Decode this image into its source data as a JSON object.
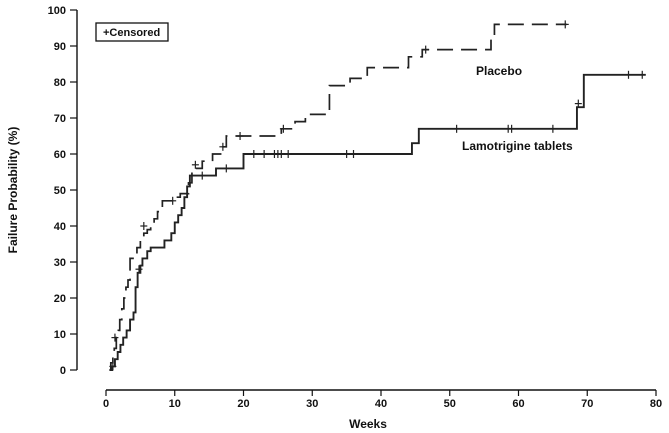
{
  "chart_data": {
    "type": "line",
    "title": "",
    "xlabel": "Weeks",
    "ylabel": "Failure Probability (%)",
    "xlim": [
      0,
      80
    ],
    "ylim": [
      0,
      100
    ],
    "x_ticks": [
      0,
      10,
      20,
      30,
      40,
      50,
      60,
      70,
      80
    ],
    "y_ticks": [
      0,
      10,
      20,
      30,
      40,
      50,
      60,
      70,
      80,
      90,
      100
    ],
    "grid": false,
    "legend": {
      "text": "+Censored",
      "position": "top-left"
    },
    "series": [
      {
        "name": "Placebo",
        "style": "dashed",
        "color": "#222222",
        "steps": [
          [
            0.5,
            0
          ],
          [
            0.7,
            2
          ],
          [
            1.0,
            4
          ],
          [
            1.2,
            6
          ],
          [
            1.5,
            9
          ],
          [
            1.8,
            11
          ],
          [
            2.0,
            14
          ],
          [
            2.3,
            17
          ],
          [
            2.6,
            20
          ],
          [
            2.9,
            23
          ],
          [
            3.2,
            25
          ],
          [
            3.5,
            31
          ],
          [
            4.5,
            34
          ],
          [
            5.0,
            37
          ],
          [
            5.5,
            38
          ],
          [
            6.0,
            39
          ],
          [
            6.5,
            40
          ],
          [
            7.0,
            42
          ],
          [
            7.5,
            44
          ],
          [
            8.2,
            47
          ],
          [
            10.0,
            48
          ],
          [
            10.8,
            49
          ],
          [
            12.0,
            52
          ],
          [
            12.5,
            56
          ],
          [
            14.0,
            58
          ],
          [
            15.5,
            60
          ],
          [
            16.8,
            62
          ],
          [
            17.5,
            65
          ],
          [
            25.5,
            67
          ],
          [
            27.5,
            69
          ],
          [
            29.0,
            71
          ],
          [
            32.5,
            79
          ],
          [
            35.5,
            81
          ],
          [
            38.0,
            84
          ],
          [
            44.0,
            87
          ],
          [
            46.0,
            89
          ],
          [
            56.0,
            92
          ],
          [
            56.5,
            96
          ],
          [
            67.0,
            96
          ]
        ],
        "censored": [
          [
            1.3,
            9
          ],
          [
            5.5,
            40
          ],
          [
            9.7,
            47
          ],
          [
            13.0,
            57
          ],
          [
            17.0,
            62
          ],
          [
            19.5,
            65
          ],
          [
            25.8,
            67
          ],
          [
            46.5,
            89
          ],
          [
            66.8,
            96
          ]
        ]
      },
      {
        "name": "Lamotrigine tablets",
        "style": "solid",
        "color": "#222222",
        "steps": [
          [
            0.5,
            0
          ],
          [
            0.9,
            1
          ],
          [
            1.3,
            3
          ],
          [
            1.7,
            5
          ],
          [
            2.1,
            7
          ],
          [
            2.5,
            9
          ],
          [
            3.0,
            11
          ],
          [
            3.5,
            14
          ],
          [
            4.0,
            16
          ],
          [
            4.3,
            23
          ],
          [
            4.6,
            27
          ],
          [
            5.0,
            29
          ],
          [
            5.3,
            31
          ],
          [
            6.0,
            33
          ],
          [
            6.5,
            34
          ],
          [
            8.5,
            36
          ],
          [
            9.5,
            38
          ],
          [
            10.0,
            41
          ],
          [
            10.5,
            43
          ],
          [
            11.0,
            45
          ],
          [
            11.4,
            48
          ],
          [
            11.8,
            51
          ],
          [
            12.2,
            54
          ],
          [
            16.0,
            56
          ],
          [
            20.0,
            60
          ],
          [
            44.5,
            63
          ],
          [
            45.5,
            67
          ],
          [
            68.5,
            73
          ],
          [
            69.5,
            82
          ],
          [
            78.5,
            82
          ]
        ],
        "censored": [
          [
            1.0,
            1
          ],
          [
            4.8,
            28
          ],
          [
            14.0,
            54
          ],
          [
            17.5,
            56
          ],
          [
            21.5,
            60
          ],
          [
            23.0,
            60
          ],
          [
            24.5,
            60
          ],
          [
            25.0,
            60
          ],
          [
            25.5,
            60
          ],
          [
            26.5,
            60
          ],
          [
            35.0,
            60
          ],
          [
            36.0,
            60
          ],
          [
            51.0,
            67
          ],
          [
            58.5,
            67
          ],
          [
            59.0,
            67
          ],
          [
            65.0,
            67
          ],
          [
            68.7,
            74
          ],
          [
            76.0,
            82
          ],
          [
            78.0,
            82
          ]
        ]
      }
    ]
  }
}
